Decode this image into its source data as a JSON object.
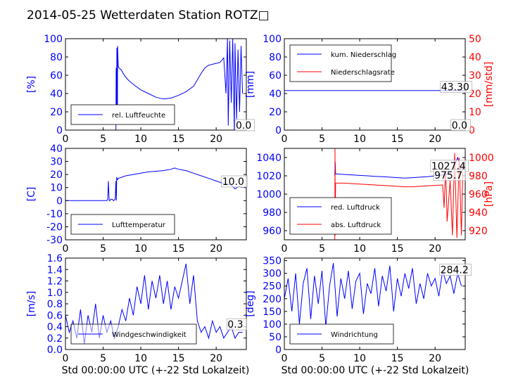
{
  "title": "2014-05-25 Wetterdaten Station ROTZ□",
  "colors": {
    "primary": "#0000ff",
    "secondary": "#ff0000",
    "axis": "#000000"
  },
  "chart_data": [
    {
      "type": "line",
      "ylabel": "[%]",
      "xlim": [
        0,
        24
      ],
      "ylim": [
        0,
        100
      ],
      "xticks": [
        0,
        5,
        10,
        15,
        20
      ],
      "yticks": [
        0,
        20,
        40,
        60,
        80,
        100
      ],
      "legend": [
        "rel. Luftfeuchte"
      ],
      "legend_position": "lower-left",
      "annotations": [
        {
          "text": "0.0",
          "x": 22.6,
          "y": 0
        }
      ],
      "series": [
        {
          "name": "rel. Luftfeuchte",
          "axis": "left",
          "color": "#0000ff",
          "x": [
            0,
            6.7,
            6.72,
            6.8,
            6.82,
            6.9,
            6.92,
            7.0,
            7.1,
            7.4,
            7.8,
            8.3,
            9.0,
            10.0,
            11.0,
            12.0,
            13.0,
            14.0,
            15.0,
            16.0,
            17.0,
            17.5,
            18.0,
            18.5,
            19.0,
            19.5,
            20.0,
            20.5,
            21.0,
            21.3,
            21.5,
            21.6,
            21.8,
            22.0,
            22.2,
            22.4,
            22.5,
            22.7,
            22.9,
            23.1,
            23.3,
            23.5
          ],
          "y": [
            0,
            0,
            68,
            10,
            90,
            20,
            92,
            70,
            68,
            66,
            60,
            55,
            50,
            44,
            40,
            36,
            34,
            35,
            38,
            42,
            48,
            55,
            62,
            68,
            71,
            72,
            73,
            74,
            79,
            40,
            100,
            5,
            98,
            30,
            100,
            0,
            95,
            12,
            88,
            20,
            92,
            40
          ]
        }
      ]
    },
    {
      "type": "line",
      "ylabel": "[mm]",
      "y2label": "[mm/std]",
      "xlim": [
        0,
        24
      ],
      "ylim": [
        0,
        100
      ],
      "y2lim": [
        0,
        50
      ],
      "xticks": [
        0,
        5,
        10,
        15,
        20
      ],
      "yticks": [
        0,
        20,
        40,
        60,
        80,
        100
      ],
      "y2ticks": [
        0,
        10,
        20,
        30,
        40,
        50
      ],
      "legend": [
        "kum. Niederschlag",
        "Niederschlagsrate"
      ],
      "legend_position": "upper-left",
      "annotations": [
        {
          "text": "43.30",
          "x": 20.8,
          "y": 43.3
        },
        {
          "text": "0.0",
          "x": 22.2,
          "y": 0
        }
      ],
      "series": [
        {
          "name": "kum. Niederschlag",
          "axis": "left",
          "color": "#0000ff",
          "x": [
            0,
            24
          ],
          "y": [
            43.3,
            43.3
          ]
        },
        {
          "name": "Niederschlagsrate",
          "axis": "right",
          "color": "#ff0000",
          "x": [
            0,
            24
          ],
          "y": [
            0,
            0
          ]
        }
      ]
    },
    {
      "type": "line",
      "ylabel": "[C]",
      "xlim": [
        0,
        24
      ],
      "ylim": [
        -30,
        40
      ],
      "xticks": [
        0,
        5,
        10,
        15,
        20
      ],
      "yticks": [
        -30,
        -20,
        -10,
        0,
        10,
        20,
        30,
        40
      ],
      "legend": [
        "Lufttemperatur"
      ],
      "legend_position": "lower-left",
      "annotations": [
        {
          "text": "10.0",
          "x": 20.8,
          "y": 12
        }
      ],
      "series": [
        {
          "name": "Lufttemperatur",
          "axis": "left",
          "color": "#0000ff",
          "x": [
            0,
            5.5,
            5.6,
            5.7,
            5.8,
            5.9,
            6.0,
            6.2,
            6.4,
            6.6,
            6.7,
            6.75,
            6.8,
            6.9,
            7.0,
            7.5,
            8.0,
            9.0,
            10.0,
            11.0,
            12.0,
            13.0,
            14.0,
            14.5,
            15.0,
            16.0,
            17.0,
            18.0,
            19.0,
            20.0,
            21.0,
            22.0,
            22.5,
            23.0,
            23.5
          ],
          "y": [
            0,
            0,
            1,
            15,
            0,
            0,
            1,
            1,
            0,
            1,
            15,
            0,
            18,
            16,
            17,
            18,
            19,
            20,
            21,
            22,
            22.5,
            23,
            24,
            25,
            24,
            23,
            21,
            19,
            17,
            15,
            13,
            12,
            9,
            11,
            10
          ]
        }
      ]
    },
    {
      "type": "line",
      "ylabel": "",
      "y2label": "[hPa]",
      "xlim": [
        0,
        24
      ],
      "ylim": [
        950,
        1050
      ],
      "y2lim": [
        910,
        1010
      ],
      "xticks": [
        0,
        5,
        10,
        15,
        20
      ],
      "yticks": [
        960,
        980,
        1000,
        1020,
        1040
      ],
      "y2ticks": [
        920,
        940,
        960,
        980,
        1000
      ],
      "legend": [
        "red. Luftdruck",
        "abs. Luftdruck"
      ],
      "legend_position": "lower-left",
      "annotations": [
        {
          "text": "1027.4",
          "x": 19.5,
          "y": 1027
        },
        {
          "text": "975.7",
          "x": 19.9,
          "y": 1017
        }
      ],
      "series": [
        {
          "name": "red. Luftdruck",
          "axis": "left",
          "color": "#0000ff",
          "x": [
            6.7,
            6.75,
            6.8,
            7.0,
            8.0,
            9.0,
            10.0,
            11.0,
            12.0,
            13.0,
            14.0,
            15.0,
            16.0,
            17.0,
            18.0,
            19.0,
            20.0,
            21.0,
            22.0,
            22.5,
            23.0,
            23.5
          ],
          "y": [
            1020,
            1035,
            1022,
            1022,
            1021.5,
            1021,
            1020.5,
            1020,
            1019.5,
            1019,
            1018.5,
            1018,
            1017.5,
            1018,
            1018.5,
            1019,
            1020,
            1021,
            1022,
            1030,
            1040,
            1025
          ]
        },
        {
          "name": "abs. Luftdruck",
          "axis": "right",
          "color": "#ff0000",
          "x": [
            6.7,
            6.72,
            6.75,
            6.8,
            7.0,
            8.0,
            9.0,
            10.0,
            11.0,
            12.0,
            13.0,
            14.0,
            15.0,
            16.0,
            17.0,
            18.0,
            19.0,
            20.0,
            21.0,
            21.2,
            21.4,
            21.6,
            22.0,
            22.3,
            22.6,
            22.9,
            23.2,
            23.5,
            23.7
          ],
          "y": [
            910,
            1010,
            915,
            972,
            972,
            972,
            971.5,
            971,
            970.5,
            970,
            969.5,
            969,
            968.5,
            968,
            968,
            968.5,
            969,
            969.5,
            970,
            945,
            990,
            930,
            975,
            915,
            1005,
            912,
            1000,
            915,
            995
          ]
        }
      ]
    },
    {
      "type": "line",
      "ylabel": "[m/s]",
      "xlim": [
        0,
        24
      ],
      "ylim": [
        0,
        1.6
      ],
      "xticks": [
        0,
        5,
        10,
        15,
        20
      ],
      "yticks": [
        0,
        0.2,
        0.4,
        0.6,
        0.8,
        1.0,
        1.2,
        1.4,
        1.6
      ],
      "legend": [
        "Windgeschwindigkeit"
      ],
      "legend_position": "lower-left",
      "annotations": [
        {
          "text": "0.3",
          "x": 21.5,
          "y": 0.38
        }
      ],
      "series": [
        {
          "name": "Windgeschwindigkeit",
          "axis": "left",
          "color": "#0000ff",
          "x": [
            0,
            0.5,
            1,
            1.5,
            2,
            2.5,
            3,
            3.5,
            4,
            4.5,
            5,
            5.5,
            6,
            6.5,
            7,
            7.5,
            8,
            8.5,
            9,
            9.5,
            10,
            10.5,
            11,
            11.5,
            12,
            12.5,
            13,
            13.5,
            14,
            14.5,
            15,
            15.5,
            16,
            16.5,
            17,
            17.5,
            18,
            18.5,
            19,
            19.5,
            20,
            20.5,
            21,
            21.5,
            22,
            22.5,
            23,
            23.5
          ],
          "y": [
            0.6,
            0.3,
            0.5,
            0.2,
            0.7,
            0.1,
            0.6,
            0.3,
            0.8,
            0.2,
            0.6,
            0.3,
            0.5,
            0.2,
            0.4,
            0.7,
            0.5,
            0.9,
            0.6,
            1.1,
            0.8,
            1.3,
            0.7,
            1.2,
            0.9,
            1.3,
            0.8,
            1.2,
            0.7,
            1.1,
            0.9,
            1.2,
            1.5,
            0.8,
            1.3,
            0.5,
            0.3,
            0.4,
            0.2,
            0.5,
            0.3,
            0.4,
            0.2,
            0.3,
            0.4,
            0.2,
            0.3,
            0.3
          ]
        }
      ]
    },
    {
      "type": "line",
      "ylabel": "[deg]",
      "xlim": [
        0,
        24
      ],
      "ylim": [
        0,
        360
      ],
      "xticks": [
        0,
        5,
        10,
        15,
        20
      ],
      "yticks": [
        0,
        50,
        100,
        150,
        200,
        250,
        300,
        350
      ],
      "legend": [
        "Windrichtung"
      ],
      "legend_position": "lower-left",
      "annotations": [
        {
          "text": "284.2",
          "x": 20.7,
          "y": 300
        }
      ],
      "series": [
        {
          "name": "Windrichtung",
          "axis": "left",
          "color": "#0000ff",
          "x": [
            0,
            0.5,
            1,
            1.5,
            2,
            2.5,
            3,
            3.5,
            4,
            4.5,
            5,
            5.5,
            6,
            6.5,
            7,
            7.5,
            8,
            8.5,
            9,
            9.5,
            10,
            10.5,
            11,
            11.5,
            12,
            12.5,
            13,
            13.5,
            14,
            14.5,
            15,
            15.5,
            16,
            16.5,
            17,
            17.5,
            18,
            18.5,
            19,
            19.5,
            20,
            20.5,
            21,
            21.5,
            22,
            22.5,
            23,
            23.5
          ],
          "y": [
            200,
            280,
            150,
            300,
            100,
            260,
            320,
            120,
            290,
            180,
            310,
            90,
            250,
            340,
            130,
            280,
            200,
            310,
            160,
            270,
            300,
            140,
            260,
            220,
            320,
            170,
            290,
            230,
            330,
            150,
            280,
            210,
            300,
            240,
            320,
            180,
            260,
            200,
            300,
            250,
            280,
            210,
            310,
            260,
            290,
            220,
            300,
            250
          ]
        }
      ]
    }
  ],
  "xlabel": "Std 00:00:00 UTC (+-22 Std Lokalzeit)"
}
